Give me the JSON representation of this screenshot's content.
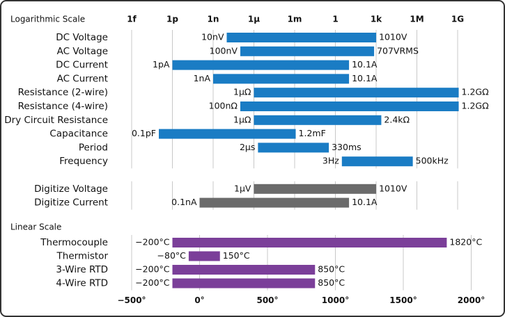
{
  "chart_data": [
    {
      "type": "range-bar",
      "title": "Logarithmic Scale",
      "log_scale": true,
      "xaxis_position": "top",
      "grid": true,
      "categories": [
        "DC Voltage",
        "AC Voltage",
        "DC Current",
        "AC Current",
        "Resistance (2-wire)",
        "Resistance (4-wire)",
        "Dry Circuit Resistance",
        "Capacitance",
        "Period",
        "Frequency",
        null,
        "Digitize Voltage",
        "Digitize Current"
      ],
      "values": [
        [
          1e-08,
          1010
        ],
        [
          1e-07,
          707
        ],
        [
          1e-12,
          10.1
        ],
        [
          1e-09,
          10.1
        ],
        [
          1e-06,
          1200000000.0
        ],
        [
          1e-07,
          1200000000.0
        ],
        [
          1e-06,
          2400
        ],
        [
          1e-13,
          0.0012
        ],
        [
          2e-06,
          0.33
        ],
        [
          3,
          500000
        ],
        null,
        [
          1e-06,
          1010
        ],
        [
          1e-10,
          10.1
        ]
      ],
      "value_labels": [
        [
          "10nV",
          "1010V"
        ],
        [
          "100nV",
          "707VRMS"
        ],
        [
          "1pA",
          "10.1A"
        ],
        [
          "1nA",
          "10.1A"
        ],
        [
          "1µΩ",
          "1.2GΩ"
        ],
        [
          "100nΩ",
          "1.2GΩ"
        ],
        [
          "1µΩ",
          "2.4kΩ"
        ],
        [
          "0.1pF",
          "1.2mF"
        ],
        [
          "2µs",
          "330ms"
        ],
        [
          "3Hz",
          "500kHz"
        ],
        null,
        [
          "1µV",
          "1010V"
        ],
        [
          "0.1nA",
          "10.1A"
        ]
      ],
      "bar_colors": [
        "#1a7cc4",
        "#1a7cc4",
        "#1a7cc4",
        "#1a7cc4",
        "#1a7cc4",
        "#1a7cc4",
        "#1a7cc4",
        "#1a7cc4",
        "#1a7cc4",
        "#1a7cc4",
        null,
        "#6b6b6b",
        "#6b6b6b"
      ],
      "xlim": [
        1e-15,
        10000000000.0
      ],
      "xticks": [
        {
          "value": 1e-15,
          "label": "1f"
        },
        {
          "value": 1e-12,
          "label": "1p"
        },
        {
          "value": 1e-09,
          "label": "1n"
        },
        {
          "value": 1e-06,
          "label": "1µ"
        },
        {
          "value": 0.001,
          "label": "1m"
        },
        1,
        {
          "value": 1000.0,
          "label": "1k"
        },
        {
          "value": 1000000.0,
          "label": "1M"
        },
        {
          "value": 1000000000.0,
          "label": "1G"
        }
      ]
    },
    {
      "type": "range-bar",
      "title": "Linear Scale",
      "log_scale": false,
      "xaxis_position": "bottom",
      "grid": true,
      "categories": [
        "Thermocouple",
        "Thermistor",
        "3-Wire RTD",
        "4-Wire RTD"
      ],
      "values": [
        [
          -200,
          1820
        ],
        [
          -80,
          150
        ],
        [
          -200,
          850
        ],
        [
          -200,
          850
        ]
      ],
      "value_labels": [
        [
          "−200°C",
          "1820°C"
        ],
        [
          "−80°C",
          "150°C"
        ],
        [
          "−200°C",
          "850°C"
        ],
        [
          "−200°C",
          "850°C"
        ]
      ],
      "color": "#7b3f99",
      "xlim": [
        -500,
        2000
      ],
      "xticks": [
        {
          "value": -500,
          "label": "−500°"
        },
        {
          "value": 0,
          "label": "0°"
        },
        {
          "value": 500,
          "label": "500°"
        },
        {
          "value": 1000,
          "label": "1000°"
        },
        {
          "value": 1500,
          "label": "1500°"
        },
        {
          "value": 2000,
          "label": "2000°"
        }
      ]
    }
  ]
}
